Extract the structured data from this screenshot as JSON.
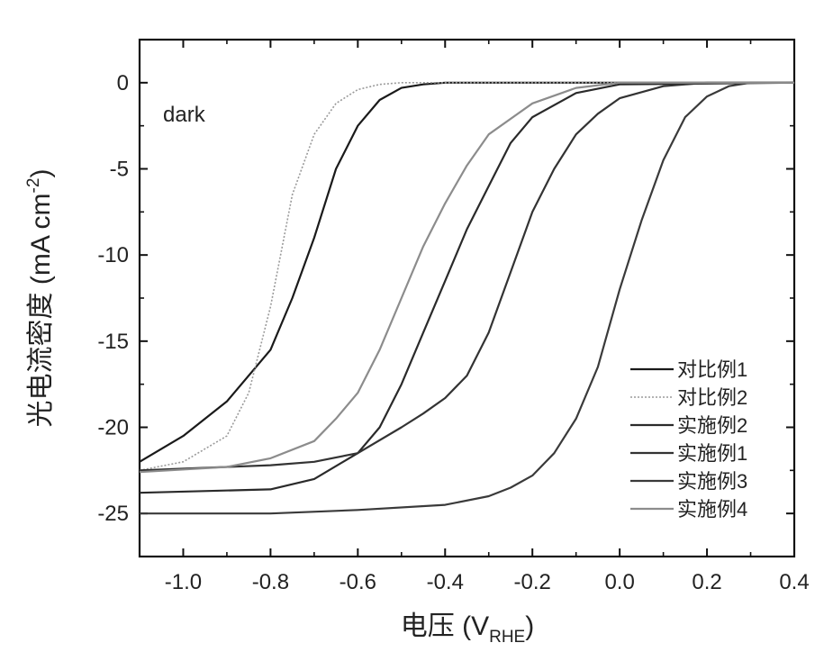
{
  "chart_data": {
    "type": "line",
    "title": "",
    "xlabel": "电压 (V",
    "xlabel_sub": "RHE",
    "xlabel_suffix": ")",
    "ylabel": "光电流密度 (mA cm",
    "ylabel_sup": "-2",
    "ylabel_suffix": ")",
    "xlim": [
      -1.1,
      0.4
    ],
    "ylim": [
      -27.5,
      2.5
    ],
    "xticks": [
      -1.0,
      -0.8,
      -0.6,
      -0.4,
      -0.2,
      0.0,
      0.2,
      0.4
    ],
    "xtick_labels": [
      "-1.0",
      "-0.8",
      "-0.6",
      "-0.4",
      "-0.2",
      "0.0",
      "0.2",
      "0.4"
    ],
    "yticks": [
      0,
      -5,
      -10,
      -15,
      -20,
      -25
    ],
    "ytick_labels": [
      "0",
      "-5",
      "-10",
      "-15",
      "-20",
      "-25"
    ],
    "annotation": "dark",
    "grid": false,
    "legend_position": "bottom-right",
    "series": [
      {
        "name": "对比例1",
        "color": "#1a1a1a",
        "style": "solid",
        "x": [
          -1.1,
          -1.0,
          -0.9,
          -0.8,
          -0.75,
          -0.7,
          -0.65,
          -0.6,
          -0.55,
          -0.5,
          -0.45,
          -0.4,
          -0.3,
          0.4
        ],
        "y": [
          -22.0,
          -20.5,
          -18.5,
          -15.5,
          -12.5,
          -9.0,
          -5.0,
          -2.5,
          -1.0,
          -0.3,
          -0.1,
          0.0,
          0.0,
          0.0
        ]
      },
      {
        "name": "对比例2",
        "color": "#9a9a9a",
        "style": "dotted",
        "x": [
          -1.1,
          -1.0,
          -0.9,
          -0.85,
          -0.8,
          -0.75,
          -0.7,
          -0.65,
          -0.6,
          -0.55,
          -0.5,
          0.4
        ],
        "y": [
          -22.5,
          -22.0,
          -20.5,
          -18.0,
          -13.0,
          -6.5,
          -3.0,
          -1.2,
          -0.4,
          -0.1,
          0.0,
          0.0
        ]
      },
      {
        "name": "实施例2",
        "color": "#2a2a2a",
        "style": "solid",
        "x": [
          -1.1,
          -0.8,
          -0.7,
          -0.6,
          -0.55,
          -0.5,
          -0.45,
          -0.4,
          -0.35,
          -0.3,
          -0.25,
          -0.2,
          -0.1,
          0.0,
          0.4
        ],
        "y": [
          -23.8,
          -23.6,
          -23.0,
          -21.5,
          -20.0,
          -17.5,
          -14.5,
          -11.5,
          -8.5,
          -6.0,
          -3.5,
          -2.0,
          -0.6,
          -0.1,
          0.0
        ]
      },
      {
        "name": "实施例1",
        "color": "#333333",
        "style": "solid",
        "x": [
          -1.1,
          -0.8,
          -0.7,
          -0.6,
          -0.5,
          -0.45,
          -0.4,
          -0.35,
          -0.3,
          -0.25,
          -0.2,
          -0.15,
          -0.1,
          -0.05,
          0.0,
          0.1,
          0.2,
          0.4
        ],
        "y": [
          -22.5,
          -22.2,
          -22.0,
          -21.5,
          -20.0,
          -19.2,
          -18.3,
          -17.0,
          -14.5,
          -11.0,
          -7.5,
          -5.0,
          -3.0,
          -1.8,
          -0.9,
          -0.2,
          0.0,
          0.0
        ]
      },
      {
        "name": "实施例3",
        "color": "#3a3a3a",
        "style": "solid",
        "x": [
          -1.1,
          -0.8,
          -0.6,
          -0.4,
          -0.3,
          -0.25,
          -0.2,
          -0.15,
          -0.1,
          -0.05,
          0.0,
          0.05,
          0.1,
          0.15,
          0.2,
          0.25,
          0.3,
          0.4
        ],
        "y": [
          -25.0,
          -25.0,
          -24.8,
          -24.5,
          -24.0,
          -23.5,
          -22.8,
          -21.5,
          -19.5,
          -16.5,
          -12.0,
          -8.0,
          -4.5,
          -2.0,
          -0.8,
          -0.2,
          0.0,
          0.0
        ]
      },
      {
        "name": "实施例4",
        "color": "#8c8c8c",
        "style": "solid",
        "x": [
          -1.1,
          -0.9,
          -0.8,
          -0.7,
          -0.65,
          -0.6,
          -0.55,
          -0.5,
          -0.45,
          -0.4,
          -0.35,
          -0.3,
          -0.2,
          -0.1,
          0.0,
          0.4
        ],
        "y": [
          -22.6,
          -22.3,
          -21.8,
          -20.8,
          -19.5,
          -18.0,
          -15.5,
          -12.5,
          -9.5,
          -7.0,
          -4.8,
          -3.0,
          -1.2,
          -0.3,
          0.0,
          0.0
        ]
      }
    ]
  }
}
